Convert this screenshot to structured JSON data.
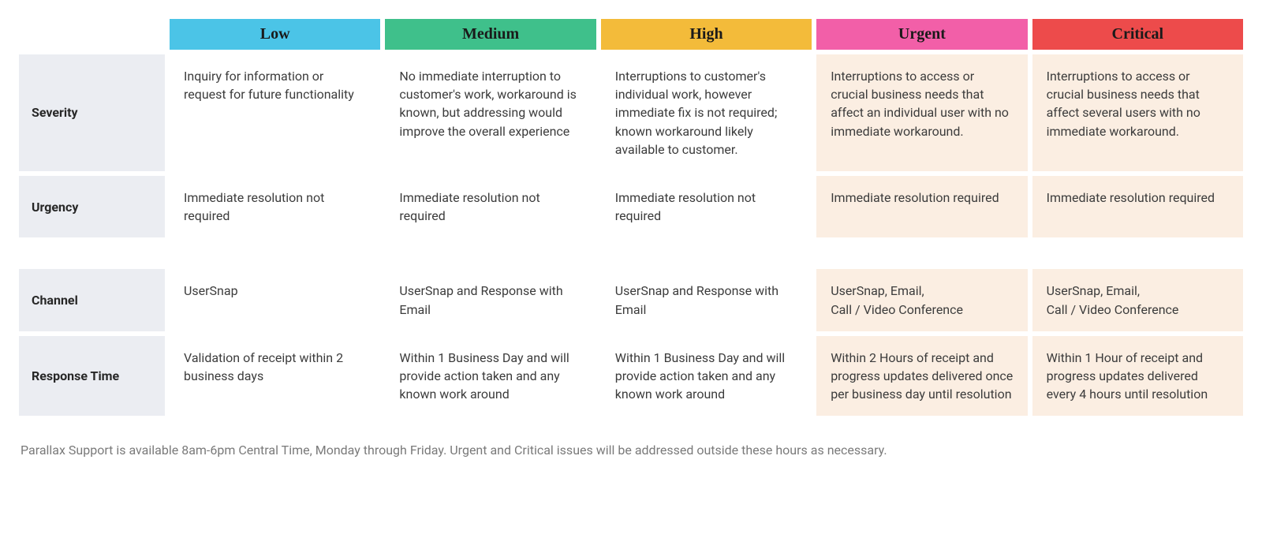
{
  "columns": [
    {
      "key": "low",
      "label": "Low",
      "bg": "#4bc4e7",
      "fg": "#1a1a1a",
      "highlight": false
    },
    {
      "key": "medium",
      "label": "Medium",
      "bg": "#3fc08b",
      "fg": "#1a1a1a",
      "highlight": false
    },
    {
      "key": "high",
      "label": "High",
      "bg": "#f3bb3a",
      "fg": "#1a1a1a",
      "highlight": false
    },
    {
      "key": "urgent",
      "label": "Urgent",
      "bg": "#f25fa8",
      "fg": "#1a1a1a",
      "highlight": true
    },
    {
      "key": "critical",
      "label": "Critical",
      "bg": "#ed4b4b",
      "fg": "#1a1a1a",
      "highlight": true
    }
  ],
  "rows": [
    {
      "key": "severity",
      "label": "Severity",
      "cells": {
        "low": "Inquiry for information or request for future functionality",
        "medium": "No immediate interruption to customer's work, workaround is known, but addressing would improve the overall experience",
        "high": "Interruptions to customer's individual work, however immediate fix is not required; known workaround likely available to customer.",
        "urgent": "Interruptions to access or crucial business needs that affect an individual user with no immediate workaround.",
        "critical": "Interruptions to access or crucial business needs that affect several users with no immediate workaround."
      }
    },
    {
      "key": "urgency",
      "label": "Urgency",
      "cells": {
        "low": "Immediate resolution not required",
        "medium": "Immediate resolution not required",
        "high": "Immediate resolution not required",
        "urgent": "Immediate resolution required",
        "critical": "Immediate resolution required"
      }
    },
    {
      "gap": true
    },
    {
      "key": "channel",
      "label": "Channel",
      "cells": {
        "low": "UserSnap",
        "medium": "UserSnap and Response with Email",
        "high": "UserSnap and Response with Email",
        "urgent": "UserSnap, Email,\nCall / Video Conference",
        "critical": "UserSnap, Email,\nCall / Video Conference"
      }
    },
    {
      "key": "response_time",
      "label": "Response Time",
      "cells": {
        "low": "Validation of receipt within 2 business days",
        "medium": "Within 1 Business Day and will provide action taken and any known work around",
        "high": "Within 1 Business Day and will provide action taken and any known work around",
        "urgent": "Within 2 Hours of receipt and progress updates delivered once per business day until resolution",
        "critical": "Within 1 Hour of receipt and progress updates delivered every 4 hours until resolution"
      }
    }
  ],
  "footnote": "Parallax Support is available 8am-6pm Central Time, Monday through Friday. Urgent and Critical issues will be addressed outside these hours as necessary.",
  "style": {
    "row_head_bg": "#ebedf2",
    "cell_highlight_bg": "#fbeee2",
    "cell_bg": "#ffffff",
    "body_font_size": 16,
    "header_font_size": 20,
    "footnote_color": "#7a7a7a"
  }
}
